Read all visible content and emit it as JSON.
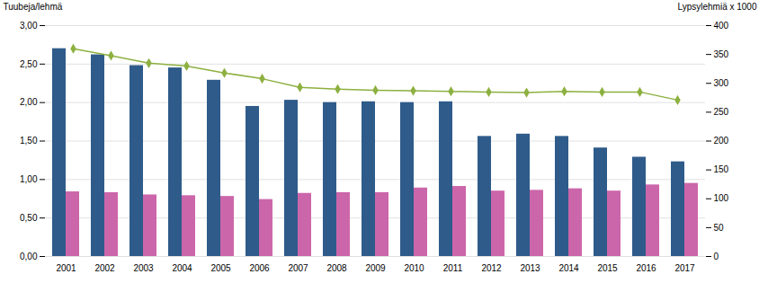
{
  "chart_data": {
    "type": "bar",
    "categories": [
      "2001",
      "2002",
      "2003",
      "2004",
      "2005",
      "2006",
      "2007",
      "2008",
      "2009",
      "2010",
      "2011",
      "2012",
      "2013",
      "2014",
      "2015",
      "2016",
      "2017"
    ],
    "series": [
      {
        "type": "bar",
        "color": "#2E5B8A",
        "values": [
          2.7,
          2.62,
          2.48,
          2.45,
          2.29,
          1.95,
          2.03,
          2.0,
          2.01,
          2.0,
          2.01,
          1.56,
          1.59,
          1.56,
          1.41,
          1.29,
          1.23
        ]
      },
      {
        "type": "bar",
        "color": "#CC66AA",
        "values": [
          0.84,
          0.83,
          0.8,
          0.79,
          0.78,
          0.74,
          0.82,
          0.83,
          0.83,
          0.89,
          0.91,
          0.85,
          0.86,
          0.88,
          0.85,
          0.93,
          0.95
        ]
      },
      {
        "type": "line",
        "axis": "y2",
        "color": "#8DB040",
        "marker": "diamond",
        "values": [
          360,
          348,
          335,
          330,
          318,
          308,
          293,
          290,
          288,
          287,
          286,
          285,
          284,
          286,
          285,
          285,
          271
        ]
      }
    ],
    "ylabel": "Tuubeja/lehmä",
    "y2label": "Lypsylehmiä x 1000",
    "ylim": [
      0,
      3.0
    ],
    "yticks": [
      {
        "value": 0.0,
        "label": "0,00"
      },
      {
        "value": 0.5,
        "label": "0,50"
      },
      {
        "value": 1.0,
        "label": "1,00"
      },
      {
        "value": 1.5,
        "label": "1,50"
      },
      {
        "value": 2.0,
        "label": "2,00"
      },
      {
        "value": 2.5,
        "label": "2,50"
      },
      {
        "value": 3.0,
        "label": "3,00"
      }
    ],
    "y2lim": [
      0,
      400
    ],
    "y2ticks": [
      0,
      50,
      100,
      150,
      200,
      250,
      300,
      350,
      400
    ],
    "grid": true
  }
}
